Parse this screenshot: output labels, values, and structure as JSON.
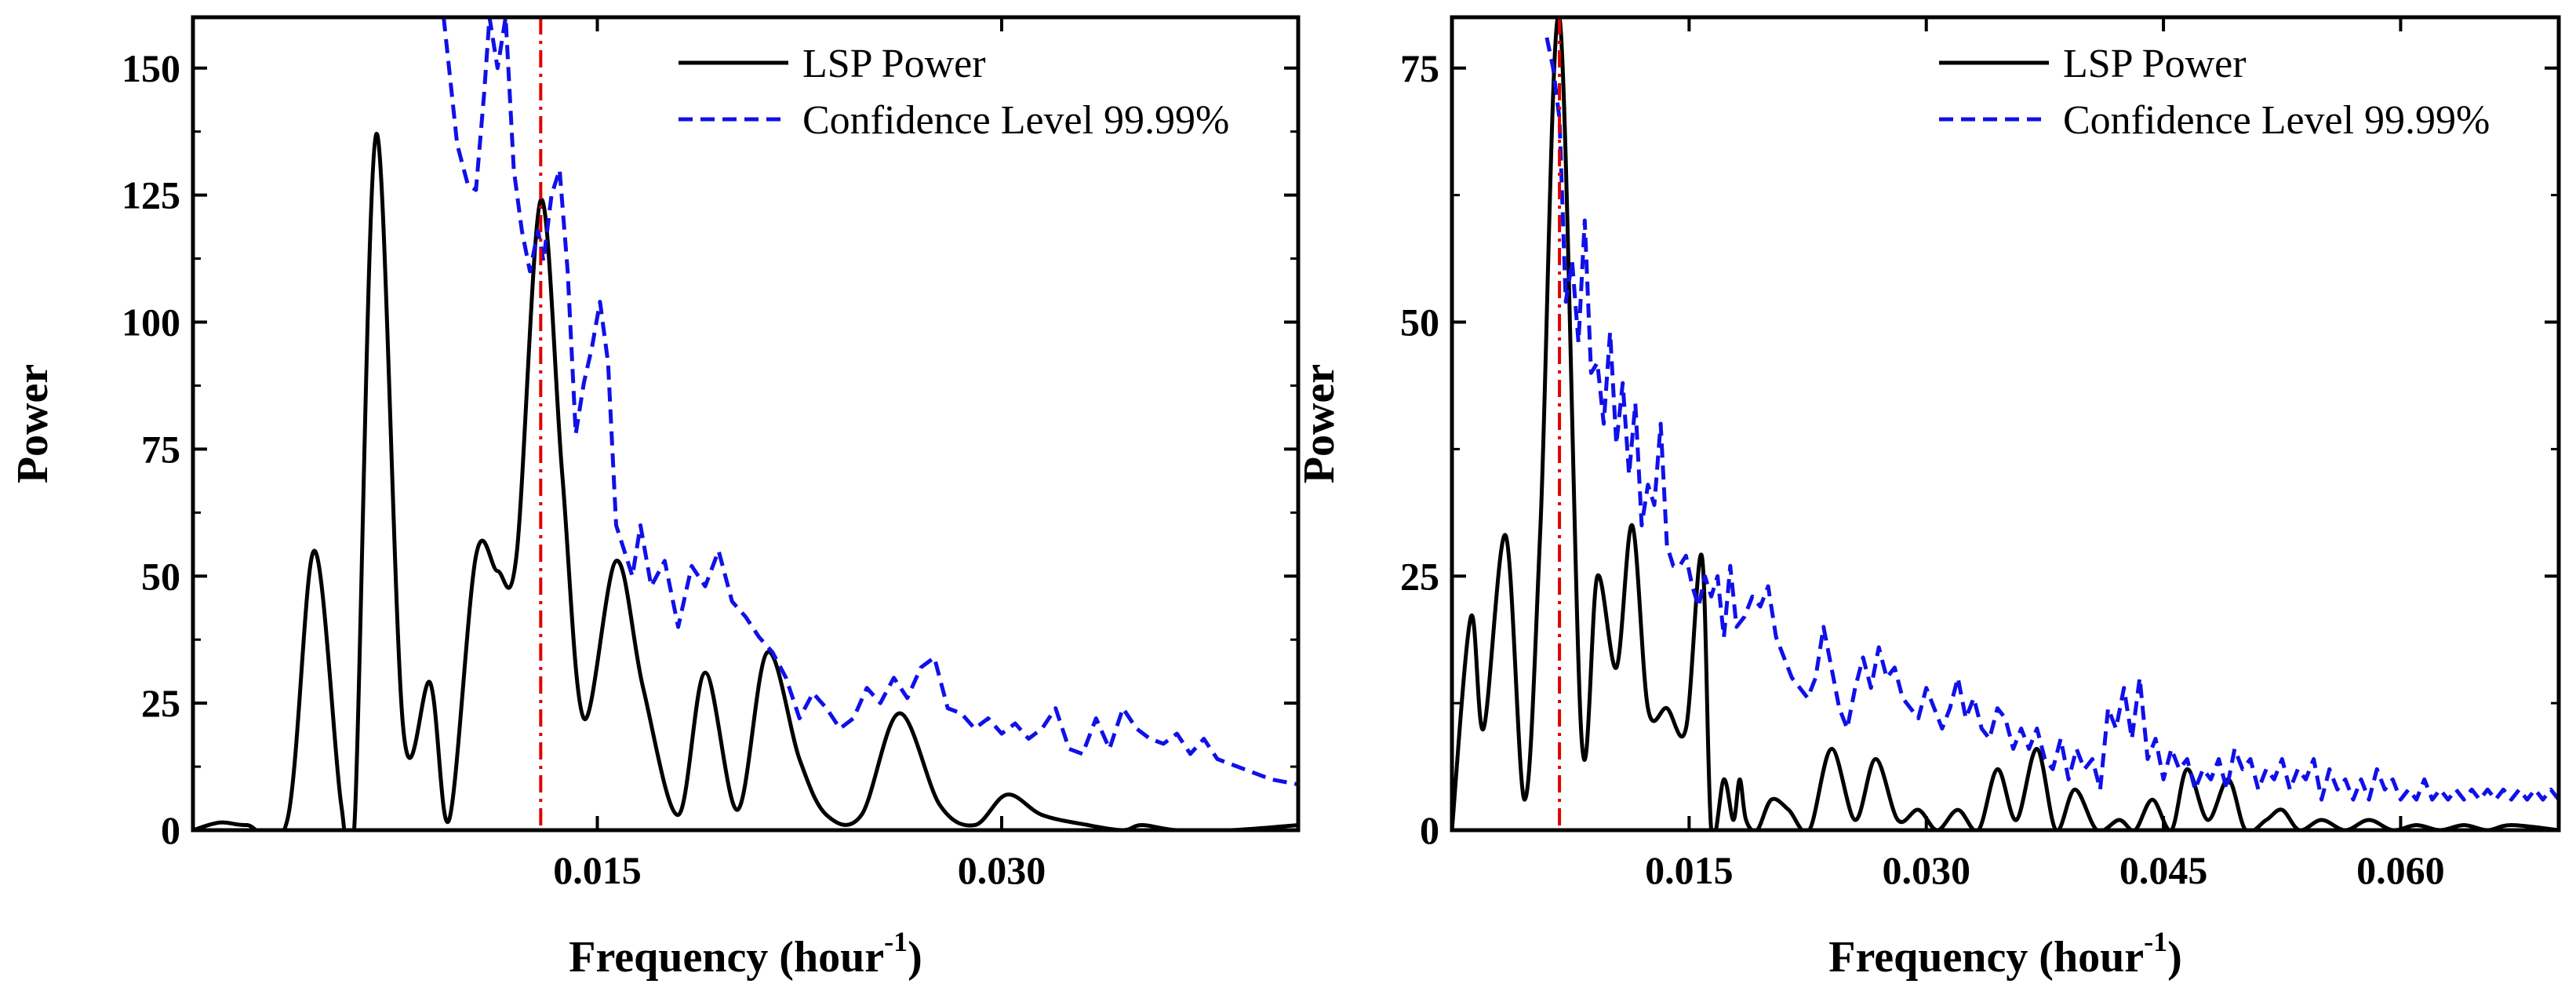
{
  "chart_data": [
    {
      "type": "line",
      "xlabel": "Frequency (hour",
      "xlabel_sup": "-1",
      "xlabel_end": ")",
      "ylabel": "Power",
      "xlim": [
        0.0,
        0.041
      ],
      "ylim": [
        0,
        160
      ],
      "xticks": [
        0.015,
        0.03
      ],
      "xtick_labels": [
        "0.015",
        "0.030"
      ],
      "yticks": [
        0,
        25,
        50,
        75,
        100,
        125,
        150
      ],
      "ytick_labels": [
        "0",
        "25",
        "50",
        "75",
        "100",
        "125",
        "150"
      ],
      "vline": {
        "x": 0.0129,
        "color": "#e00000"
      },
      "legend": {
        "position": "top-right",
        "entries": [
          "LSP Power",
          "Confidence Level 99.99%"
        ]
      },
      "series": [
        {
          "name": "LSP Power",
          "color": "#000000",
          "style": "solid",
          "x": [
            0.0,
            0.001,
            0.002,
            0.0035,
            0.0045,
            0.0055,
            0.006,
            0.0068,
            0.0078,
            0.0088,
            0.0095,
            0.0105,
            0.0113,
            0.012,
            0.0129,
            0.0137,
            0.0145,
            0.0157,
            0.0167,
            0.018,
            0.019,
            0.0202,
            0.0213,
            0.0225,
            0.0235,
            0.0248,
            0.0262,
            0.0277,
            0.029,
            0.0302,
            0.0315,
            0.0332,
            0.0345,
            0.0352,
            0.0365,
            0.0385,
            0.041
          ],
          "y": [
            0,
            1.5,
            1,
            2,
            55,
            5,
            2,
            137,
            20,
            29,
            2,
            54,
            51,
            54,
            124,
            70,
            22,
            53,
            28,
            3,
            31,
            4,
            35,
            14,
            3,
            3,
            23,
            5,
            1,
            7,
            3,
            1,
            0,
            1,
            0,
            0,
            1
          ]
        },
        {
          "name": "Confidence Level 99.99%",
          "color": "#1010e8",
          "style": "dashed",
          "x": [
            0.0093,
            0.0095,
            0.0098,
            0.0102,
            0.0105,
            0.0108,
            0.011,
            0.0113,
            0.0116,
            0.0119,
            0.0122,
            0.0125,
            0.0128,
            0.013,
            0.0133,
            0.0136,
            0.0139,
            0.0142,
            0.0145,
            0.0148,
            0.0151,
            0.0154,
            0.0157,
            0.016,
            0.0163,
            0.0166,
            0.017,
            0.0175,
            0.018,
            0.0185,
            0.019,
            0.0195,
            0.02,
            0.0205,
            0.021,
            0.0215,
            0.022,
            0.0225,
            0.023,
            0.0235,
            0.024,
            0.0245,
            0.025,
            0.0255,
            0.026,
            0.0265,
            0.027,
            0.0275,
            0.028,
            0.0285,
            0.029,
            0.0295,
            0.03,
            0.0305,
            0.031,
            0.0315,
            0.032,
            0.0325,
            0.033,
            0.0335,
            0.034,
            0.0345,
            0.035,
            0.0355,
            0.036,
            0.0365,
            0.037,
            0.0375,
            0.038,
            0.0385,
            0.039,
            0.0395,
            0.04,
            0.041
          ],
          "y": [
            160,
            150,
            135,
            127,
            126,
            145,
            160,
            150,
            160,
            130,
            118,
            110,
            118,
            112,
            125,
            130,
            110,
            78,
            88,
            95,
            104,
            92,
            60,
            55,
            50,
            60,
            48,
            53,
            40,
            52,
            48,
            55,
            45,
            42,
            38,
            35,
            30,
            22,
            27,
            24,
            20,
            22,
            28,
            25,
            30,
            26,
            32,
            34,
            24,
            23,
            20,
            22,
            19,
            21,
            18,
            20,
            24,
            16,
            15,
            22,
            16,
            24,
            20,
            18,
            17,
            19,
            15,
            18,
            14,
            13,
            12,
            11,
            10,
            9
          ]
        }
      ]
    },
    {
      "type": "line",
      "xlabel": "Frequency (hour",
      "xlabel_sup": "-1",
      "xlabel_end": ")",
      "ylabel": "Power",
      "xlim": [
        0.0,
        0.07
      ],
      "ylim": [
        0,
        80
      ],
      "xticks": [
        0.015,
        0.03,
        0.045,
        0.06
      ],
      "xtick_labels": [
        "0.015",
        "0.030",
        "0.045",
        "0.060"
      ],
      "yticks": [
        0,
        25,
        50,
        75
      ],
      "ytick_labels": [
        "0",
        "25",
        "50",
        "75"
      ],
      "vline": {
        "x": 0.0068,
        "color": "#e00000"
      },
      "legend": {
        "position": "top-right",
        "entries": [
          "LSP Power",
          "Confidence Level 99.99%"
        ]
      },
      "series": [
        {
          "name": "LSP Power",
          "color": "#000000",
          "style": "solid",
          "x": [
            0.0,
            0.0012,
            0.002,
            0.0034,
            0.0046,
            0.0056,
            0.0068,
            0.0082,
            0.0092,
            0.0104,
            0.0114,
            0.0124,
            0.0136,
            0.0148,
            0.0158,
            0.0164,
            0.0172,
            0.0178,
            0.0182,
            0.0186,
            0.0193,
            0.0202,
            0.0213,
            0.0226,
            0.024,
            0.0255,
            0.0268,
            0.0282,
            0.0295,
            0.0307,
            0.032,
            0.0333,
            0.0345,
            0.0357,
            0.037,
            0.0382,
            0.0394,
            0.0408,
            0.0422,
            0.0432,
            0.0443,
            0.0455,
            0.0465,
            0.0478,
            0.0491,
            0.0502,
            0.0515,
            0.0525,
            0.0536,
            0.055,
            0.0565,
            0.058,
            0.0595,
            0.061,
            0.0625,
            0.064,
            0.0655,
            0.067,
            0.07
          ],
          "y": [
            0,
            21,
            10,
            29,
            3,
            30,
            80,
            9,
            25,
            16,
            30,
            12,
            12,
            10,
            27,
            0,
            5,
            1,
            5,
            1,
            0,
            3,
            2,
            0,
            8,
            1,
            7,
            1,
            2,
            0,
            2,
            0,
            6,
            1,
            8,
            0,
            4,
            0,
            1,
            0,
            3,
            0,
            6,
            1,
            5,
            0,
            1,
            2,
            0,
            1,
            0,
            1,
            0,
            0.5,
            0,
            0.5,
            0,
            0.5,
            0
          ]
        },
        {
          "name": "Confidence Level 99.99%",
          "color": "#1010e8",
          "style": "dashed",
          "x": [
            0.006,
            0.0064,
            0.0068,
            0.0072,
            0.0076,
            0.008,
            0.0084,
            0.0088,
            0.0092,
            0.0096,
            0.01,
            0.0104,
            0.0108,
            0.0112,
            0.0116,
            0.012,
            0.0124,
            0.0128,
            0.0132,
            0.0136,
            0.014,
            0.0144,
            0.0148,
            0.0152,
            0.0156,
            0.016,
            0.0164,
            0.0168,
            0.0172,
            0.0176,
            0.018,
            0.0185,
            0.019,
            0.0195,
            0.02,
            0.0205,
            0.021,
            0.0215,
            0.022,
            0.0225,
            0.023,
            0.0235,
            0.024,
            0.0245,
            0.025,
            0.0255,
            0.026,
            0.0265,
            0.027,
            0.0275,
            0.028,
            0.0285,
            0.029,
            0.0295,
            0.03,
            0.0305,
            0.031,
            0.0315,
            0.032,
            0.0325,
            0.033,
            0.0335,
            0.034,
            0.0345,
            0.035,
            0.0355,
            0.036,
            0.0365,
            0.037,
            0.0375,
            0.038,
            0.0385,
            0.039,
            0.0395,
            0.04,
            0.0405,
            0.041,
            0.0415,
            0.042,
            0.0425,
            0.043,
            0.0435,
            0.044,
            0.0445,
            0.045,
            0.0455,
            0.046,
            0.0465,
            0.047,
            0.0475,
            0.048,
            0.0485,
            0.049,
            0.0495,
            0.05,
            0.0505,
            0.051,
            0.0515,
            0.052,
            0.0525,
            0.053,
            0.0535,
            0.054,
            0.0545,
            0.055,
            0.0555,
            0.056,
            0.0565,
            0.057,
            0.0575,
            0.058,
            0.0585,
            0.059,
            0.0595,
            0.06,
            0.0605,
            0.061,
            0.0615,
            0.062,
            0.0625,
            0.063,
            0.0635,
            0.064,
            0.0645,
            0.065,
            0.0655,
            0.066,
            0.0665,
            0.067,
            0.0675,
            0.068,
            0.0685,
            0.069,
            0.0695,
            0.07
          ],
          "y": [
            78,
            75,
            70,
            52,
            56,
            48,
            60,
            45,
            46,
            40,
            49,
            38,
            44,
            35,
            42,
            30,
            34,
            32,
            40,
            28,
            26,
            26,
            27,
            24,
            22,
            25,
            23,
            25,
            19,
            26,
            20,
            21,
            23,
            22,
            24,
            19,
            17,
            15,
            14,
            13,
            15,
            20,
            16,
            12,
            10,
            14,
            17,
            14,
            18,
            15,
            16,
            13,
            12,
            11,
            14,
            12,
            10,
            12,
            15,
            11,
            13,
            10,
            9,
            12,
            11,
            8,
            10,
            8,
            10,
            7,
            6,
            9,
            5,
            8,
            6,
            7,
            4,
            12,
            10,
            14,
            9,
            15,
            7,
            9,
            5,
            8,
            6,
            7,
            4,
            6,
            5,
            7,
            4,
            8,
            6,
            7,
            4,
            6,
            5,
            7,
            4,
            6,
            5,
            7,
            3,
            6,
            4,
            5,
            3,
            5,
            3,
            6,
            4,
            5,
            3,
            4,
            3,
            5,
            3,
            4,
            3,
            4,
            3,
            4,
            3,
            4,
            3,
            4,
            3,
            4,
            3,
            4,
            3,
            4,
            3
          ]
        }
      ]
    }
  ]
}
